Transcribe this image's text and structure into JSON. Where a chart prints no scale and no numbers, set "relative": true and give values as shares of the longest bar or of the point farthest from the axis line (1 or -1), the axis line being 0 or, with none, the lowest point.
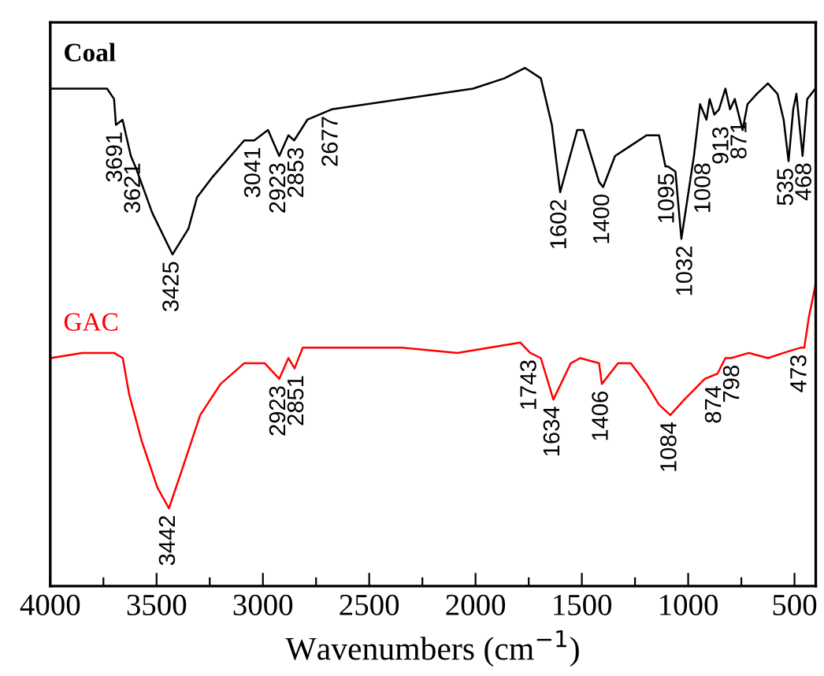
{
  "chart_data": {
    "type": "line",
    "relative": true,
    "xlabel": "Wavenumbers (cm$^{−1}$)",
    "xlim": [
      4000,
      400
    ],
    "xticks": [
      4000,
      {
        "value": 3750,
        "label": null
      },
      3500,
      {
        "value": 3250,
        "label": null
      },
      3000,
      {
        "value": 2750,
        "label": null
      },
      2500,
      {
        "value": 2250,
        "label": null
      },
      2000,
      {
        "value": 1750,
        "label": null
      },
      1500,
      {
        "value": 1250,
        "label": null
      },
      1000,
      {
        "value": 750,
        "label": null
      },
      500
    ],
    "tick_labels": "x",
    "grid": false,
    "legend": false,
    "marker": "none",
    "line_style": "solid",
    "series": [
      {
        "name": "Coal",
        "color": "#000000",
        "x": [
          4000,
          3850,
          3733,
          3700,
          3691,
          3660,
          3621,
          3600,
          3520,
          3425,
          3350,
          3310,
          3236,
          3088,
          3041,
          2976,
          2923,
          2880,
          2853,
          2791,
          2677,
          2346,
          2012,
          1864,
          1767,
          1693,
          1641,
          1602,
          1522,
          1493,
          1419,
          1400,
          1344,
          1270,
          1196,
          1137,
          1107,
          1095,
          1060,
          1032,
          973,
          944,
          914,
          899,
          877,
          855,
          825,
          803,
          781,
          744,
          721,
          677,
          625,
          580,
          551,
          528,
          506,
          491,
          462,
          440,
          402
        ],
        "values": [
          0.96,
          0.96,
          0.96,
          0.94,
          0.89,
          0.9,
          0.83,
          0.81,
          0.72,
          0.64,
          0.69,
          0.75,
          0.79,
          0.86,
          0.86,
          0.88,
          0.83,
          0.87,
          0.86,
          0.9,
          0.92,
          0.94,
          0.96,
          0.98,
          1.0,
          0.98,
          0.89,
          0.76,
          0.88,
          0.88,
          0.78,
          0.77,
          0.83,
          0.85,
          0.87,
          0.87,
          0.81,
          0.81,
          0.8,
          0.67,
          0.83,
          0.93,
          0.9,
          0.94,
          0.91,
          0.92,
          0.96,
          0.92,
          0.94,
          0.88,
          0.93,
          0.95,
          0.97,
          0.95,
          0.9,
          0.82,
          0.92,
          0.95,
          0.83,
          0.94,
          0.96
        ]
      },
      {
        "name": "GAC",
        "color": "#ff0000",
        "x": [
          4000,
          3850,
          3700,
          3659,
          3629,
          3570,
          3496,
          3442,
          3384,
          3295,
          3199,
          3088,
          2991,
          2923,
          2880,
          2851,
          2813,
          2754,
          2346,
          2086,
          1789,
          1743,
          1693,
          1634,
          1552,
          1508,
          1419,
          1406,
          1330,
          1270,
          1196,
          1137,
          1084,
          1018,
          922,
          862,
          825,
          798,
          714,
          625,
          551,
          473,
          454,
          432,
          402
        ],
        "values": [
          0.44,
          0.45,
          0.45,
          0.44,
          0.37,
          0.28,
          0.19,
          0.15,
          0.22,
          0.33,
          0.39,
          0.43,
          0.43,
          0.4,
          0.44,
          0.42,
          0.46,
          0.46,
          0.46,
          0.45,
          0.47,
          0.45,
          0.44,
          0.36,
          0.43,
          0.44,
          0.43,
          0.39,
          0.43,
          0.43,
          0.39,
          0.35,
          0.33,
          0.36,
          0.4,
          0.41,
          0.44,
          0.44,
          0.45,
          0.44,
          0.45,
          0.46,
          0.46,
          0.52,
          0.58
        ]
      }
    ],
    "annotations": [
      {
        "text": "3691",
        "x": 3691,
        "y": 0.89
      },
      {
        "text": "3621",
        "x": 3621,
        "y": 0.83
      },
      {
        "text": "3425",
        "x": 3425,
        "y": 0.64
      },
      {
        "text": "3041",
        "x": 3041,
        "y": 0.86
      },
      {
        "text": "2923",
        "x": 2923,
        "y": 0.83
      },
      {
        "text": "2853",
        "x": 2853,
        "y": 0.86
      },
      {
        "text": "2677",
        "x": 2677,
        "y": 0.92
      },
      {
        "text": "1602",
        "x": 1602,
        "y": 0.76
      },
      {
        "text": "1400",
        "x": 1400,
        "y": 0.77
      },
      {
        "text": "1095",
        "x": 1095,
        "y": 0.81
      },
      {
        "text": "1032",
        "x": 1032,
        "y": 0.67
      },
      {
        "text": "1008",
        "x": 1008,
        "y": 0.83
      },
      {
        "text": "913",
        "x": 913,
        "y": 0.9
      },
      {
        "text": "871",
        "x": 871,
        "y": 0.91
      },
      {
        "text": "535",
        "x": 535,
        "y": 0.82
      },
      {
        "text": "468",
        "x": 468,
        "y": 0.83
      },
      {
        "text": "3442",
        "x": 3442,
        "y": 0.15
      },
      {
        "text": "2923",
        "x": 2923,
        "y": 0.4
      },
      {
        "text": "2851",
        "x": 2851,
        "y": 0.42
      },
      {
        "text": "1743",
        "x": 1743,
        "y": 0.45
      },
      {
        "text": "1634",
        "x": 1634,
        "y": 0.36
      },
      {
        "text": "1406",
        "x": 1406,
        "y": 0.39
      },
      {
        "text": "1084",
        "x": 1084,
        "y": 0.33
      },
      {
        "text": "874",
        "x": 874,
        "y": 0.4
      },
      {
        "text": "798",
        "x": 798,
        "y": 0.44
      },
      {
        "text": "473",
        "x": 473,
        "y": 0.46
      }
    ]
  }
}
